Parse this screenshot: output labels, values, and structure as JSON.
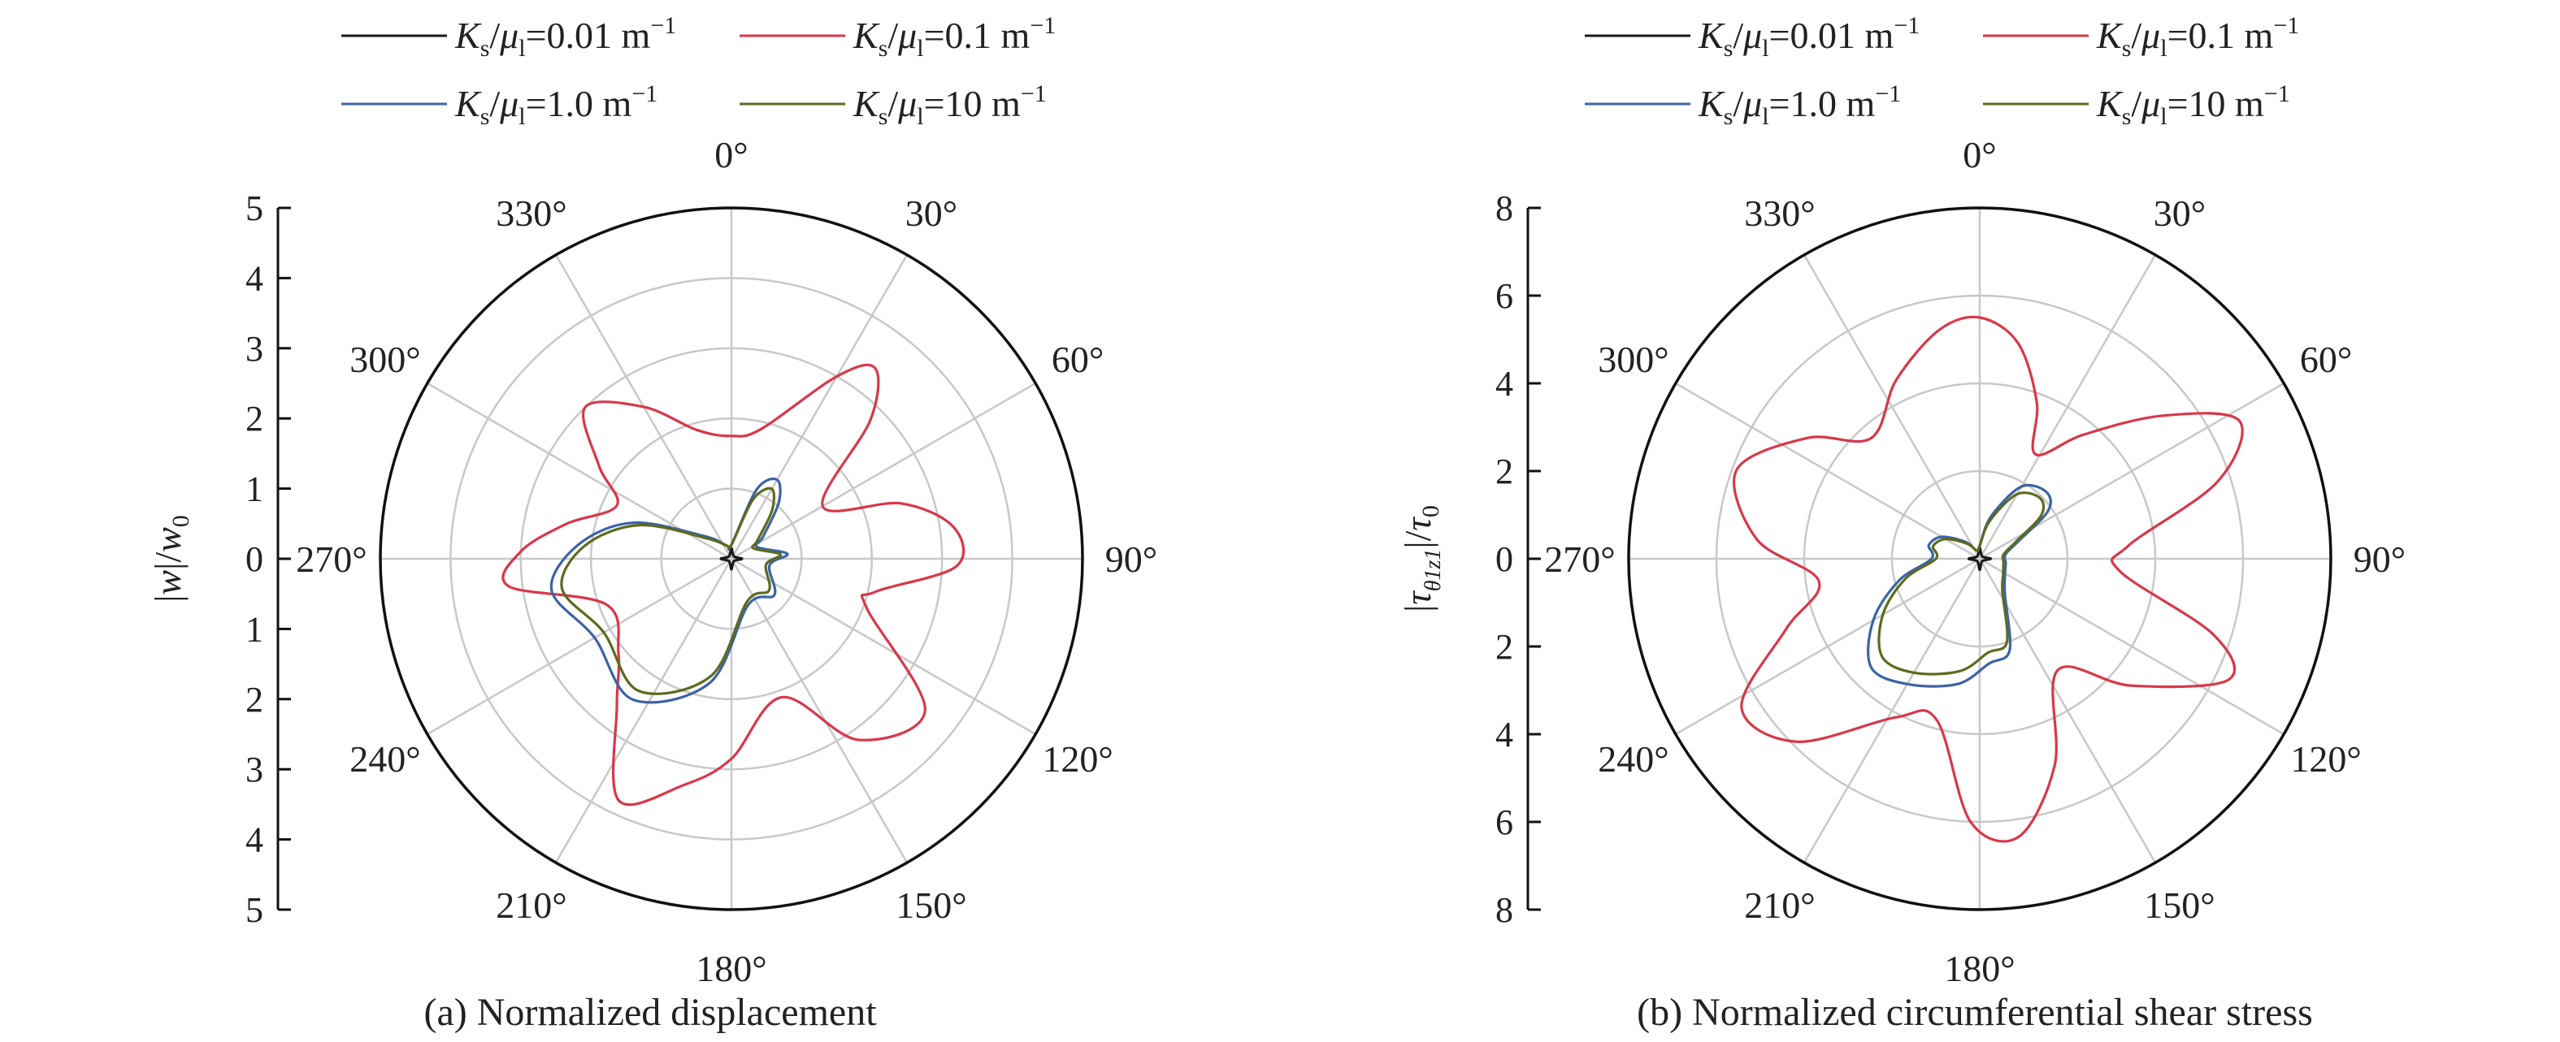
{
  "figure": {
    "captions": [
      "(a) Normalized displacement",
      "(b) Normalized circumferential shear stress"
    ]
  },
  "legend": [
    {
      "name": "K_s/μ_l=0.01 m⁻¹",
      "ratio": "0.01",
      "color": "#1a1a1a"
    },
    {
      "name": "K_s/μ_l=0.1 m⁻¹",
      "ratio": "0.1",
      "color": "#d8374a"
    },
    {
      "name": "K_s/μ_l=1.0 m⁻¹",
      "ratio": "1.0",
      "color": "#3c62a8"
    },
    {
      "name": "K_s/μ_l=10 m⁻¹",
      "ratio": "10",
      "color": "#5c6b1e"
    }
  ],
  "legend_text": {
    "ks": "K",
    "ks_sub": "s",
    "mu": "μ",
    "mu_sub": "l",
    "unit": "m",
    "unit_exp": "−1"
  },
  "chart_data": [
    {
      "type": "polar-line",
      "caption": "(a) Normalized displacement",
      "ylabel": "|w|/w0",
      "ylabel_parts": {
        "main": "|w|/w",
        "sub": "0"
      },
      "rlim": [
        0,
        5
      ],
      "r_ticks": [
        0,
        1,
        2,
        3,
        4,
        5
      ],
      "theta_labels": [
        "0°",
        "30°",
        "60°",
        "90°",
        "120°",
        "150°",
        "180°",
        "210°",
        "240°",
        "270°",
        "300°",
        "330°"
      ],
      "theta_direction": "clockwise",
      "theta_zero": "top",
      "grid": true,
      "series": [
        {
          "name": "K_s/μ_l=0.01 m⁻¹",
          "color": "#1a1a1a",
          "points": [
            [
              0,
              0.15
            ],
            [
              45,
              0.05
            ],
            [
              90,
              0.15
            ],
            [
              135,
              0.05
            ],
            [
              180,
              0.15
            ],
            [
              225,
              0.05
            ],
            [
              270,
              0.15
            ],
            [
              315,
              0.05
            ],
            [
              360,
              0.15
            ]
          ]
        },
        {
          "name": "K_s/μ_l=0.1 m⁻¹",
          "color": "#d8374a",
          "points": [
            [
              0,
              1.75
            ],
            [
              13,
              1.9
            ],
            [
              30,
              3.0
            ],
            [
              37,
              3.4
            ],
            [
              45,
              2.8
            ],
            [
              60,
              1.5
            ],
            [
              72,
              2.55
            ],
            [
              82,
              3.2
            ],
            [
              92,
              3.2
            ],
            [
              103,
              2.1
            ],
            [
              110,
              2.05
            ],
            [
              128,
              3.5
            ],
            [
              145,
              3.15
            ],
            [
              160,
              2.1
            ],
            [
              180,
              2.85
            ],
            [
              192,
              3.3
            ],
            [
              205,
              3.8
            ],
            [
              218,
              2.65
            ],
            [
              230,
              2.1
            ],
            [
              250,
              1.9
            ],
            [
              263,
              3.2
            ],
            [
              272,
              3.0
            ],
            [
              282,
              2.4
            ],
            [
              295,
              1.8
            ],
            [
              305,
              2.3
            ],
            [
              316,
              3.0
            ],
            [
              330,
              2.5
            ],
            [
              345,
              1.9
            ],
            [
              360,
              1.75
            ]
          ]
        },
        {
          "name": "K_s/μ_l=1.0 m⁻¹",
          "color": "#3c62a8",
          "points": [
            [
              0,
              0.2
            ],
            [
              20,
              1.05
            ],
            [
              30,
              1.3
            ],
            [
              40,
              1.05
            ],
            [
              55,
              0.55
            ],
            [
              65,
              0.4
            ],
            [
              85,
              0.8
            ],
            [
              100,
              0.55
            ],
            [
              130,
              0.8
            ],
            [
              160,
              0.7
            ],
            [
              190,
              1.8
            ],
            [
              215,
              2.45
            ],
            [
              240,
              2.25
            ],
            [
              260,
              2.6
            ],
            [
              275,
              2.2
            ],
            [
              290,
              1.5
            ],
            [
              310,
              0.5
            ],
            [
              340,
              0.2
            ],
            [
              360,
              0.2
            ]
          ]
        },
        {
          "name": "K_s/μ_l=10 m⁻¹",
          "color": "#5c6b1e",
          "points": [
            [
              0,
              0.2
            ],
            [
              20,
              0.9
            ],
            [
              30,
              1.15
            ],
            [
              40,
              0.9
            ],
            [
              55,
              0.45
            ],
            [
              65,
              0.35
            ],
            [
              85,
              0.7
            ],
            [
              100,
              0.5
            ],
            [
              130,
              0.7
            ],
            [
              160,
              0.65
            ],
            [
              190,
              1.7
            ],
            [
              215,
              2.3
            ],
            [
              240,
              2.1
            ],
            [
              260,
              2.45
            ],
            [
              275,
              2.1
            ],
            [
              290,
              1.4
            ],
            [
              310,
              0.45
            ],
            [
              340,
              0.2
            ],
            [
              360,
              0.2
            ]
          ]
        }
      ]
    },
    {
      "type": "polar-line",
      "caption": "(b) Normalized circumferential shear stress",
      "ylabel": "|τθ1z1|/τ0",
      "ylabel_parts": {
        "main": "|τ",
        "sub": "θ1z1",
        "tail": "|/τ",
        "sub2": "0"
      },
      "rlim": [
        0,
        8
      ],
      "r_ticks": [
        0,
        2,
        4,
        6,
        8
      ],
      "theta_labels": [
        "0°",
        "30°",
        "60°",
        "90°",
        "120°",
        "150°",
        "180°",
        "210°",
        "240°",
        "270°",
        "300°",
        "330°"
      ],
      "theta_direction": "clockwise",
      "theta_zero": "top",
      "grid": true,
      "series": [
        {
          "name": "K_s/μ_l=0.01 m⁻¹",
          "color": "#1a1a1a",
          "points": [
            [
              0,
              0.25
            ],
            [
              45,
              0.08
            ],
            [
              90,
              0.25
            ],
            [
              135,
              0.08
            ],
            [
              180,
              0.25
            ],
            [
              225,
              0.08
            ],
            [
              270,
              0.25
            ],
            [
              315,
              0.08
            ],
            [
              360,
              0.25
            ]
          ]
        },
        {
          "name": "K_s/μ_l=0.1 m⁻¹",
          "color": "#d8374a",
          "points": [
            [
              0,
              5.5
            ],
            [
              10,
              5.0
            ],
            [
              20,
              3.8
            ],
            [
              28,
              2.7
            ],
            [
              40,
              3.7
            ],
            [
              52,
              5.3
            ],
            [
              62,
              6.7
            ],
            [
              72,
              5.7
            ],
            [
              85,
              3.4
            ],
            [
              95,
              3.2
            ],
            [
              108,
              5.6
            ],
            [
              116,
              6.3
            ],
            [
              130,
              4.5
            ],
            [
              145,
              3.1
            ],
            [
              160,
              5.0
            ],
            [
              172,
              6.4
            ],
            [
              182,
              6.0
            ],
            [
              195,
              3.8
            ],
            [
              208,
              4.1
            ],
            [
              225,
              5.9
            ],
            [
              238,
              6.4
            ],
            [
              250,
              4.7
            ],
            [
              262,
              3.7
            ],
            [
              275,
              5.1
            ],
            [
              290,
              5.9
            ],
            [
              305,
              4.8
            ],
            [
              318,
              3.7
            ],
            [
              335,
              4.5
            ],
            [
              350,
              5.3
            ],
            [
              360,
              5.5
            ]
          ]
        },
        {
          "name": "K_s/μ_l=1.0 m⁻¹",
          "color": "#3c62a8",
          "points": [
            [
              0,
              0.3
            ],
            [
              15,
              1.0
            ],
            [
              30,
              1.9
            ],
            [
              45,
              2.15
            ],
            [
              55,
              1.9
            ],
            [
              65,
              1.0
            ],
            [
              80,
              0.6
            ],
            [
              100,
              0.6
            ],
            [
              125,
              0.7
            ],
            [
              145,
              1.0
            ],
            [
              162,
              2.2
            ],
            [
              175,
              2.4
            ],
            [
              190,
              2.9
            ],
            [
              210,
              3.3
            ],
            [
              225,
              3.5
            ],
            [
              240,
              2.8
            ],
            [
              255,
              1.9
            ],
            [
              270,
              1.1
            ],
            [
              285,
              1.2
            ],
            [
              300,
              1.0
            ],
            [
              320,
              0.5
            ],
            [
              340,
              0.2
            ],
            [
              360,
              0.3
            ]
          ]
        },
        {
          "name": "K_s/μ_l=10 m⁻¹",
          "color": "#5c6b1e",
          "points": [
            [
              0,
              0.3
            ],
            [
              15,
              0.9
            ],
            [
              30,
              1.7
            ],
            [
              45,
              1.95
            ],
            [
              55,
              1.7
            ],
            [
              65,
              0.9
            ],
            [
              80,
              0.55
            ],
            [
              100,
              0.55
            ],
            [
              125,
              0.65
            ],
            [
              145,
              0.9
            ],
            [
              162,
              2.0
            ],
            [
              175,
              2.15
            ],
            [
              190,
              2.6
            ],
            [
              210,
              3.0
            ],
            [
              225,
              3.15
            ],
            [
              240,
              2.55
            ],
            [
              255,
              1.75
            ],
            [
              270,
              1.0
            ],
            [
              285,
              1.1
            ],
            [
              300,
              0.9
            ],
            [
              320,
              0.45
            ],
            [
              340,
              0.2
            ],
            [
              360,
              0.3
            ]
          ]
        }
      ]
    }
  ]
}
